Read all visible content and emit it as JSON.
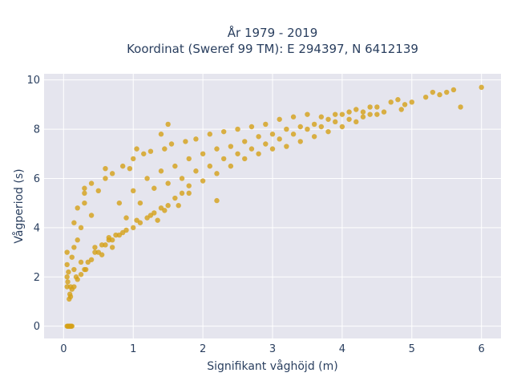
{
  "chart_data": {
    "type": "scatter",
    "title_line1": "År 1979 - 2019",
    "title_line2": "Koordinat (Sweref 99 TM): E 294397, N 6412139",
    "xlabel": "Signifikant våghöjd (m)",
    "ylabel": "Vågperiod (s)",
    "xlim": [
      -0.28,
      6.28
    ],
    "ylim": [
      -0.5,
      10.25
    ],
    "xticks": [
      0,
      1,
      2,
      3,
      4,
      5,
      6
    ],
    "yticks": [
      0,
      2,
      4,
      6,
      8,
      10
    ],
    "grid": true,
    "legend": "none",
    "marker_color": "#D4A017",
    "plot_bg": "#E5E5EE",
    "series": [
      {
        "points": [
          [
            0.05,
            0
          ],
          [
            0.06,
            0
          ],
          [
            0.07,
            0
          ],
          [
            0.08,
            0
          ],
          [
            0.09,
            0
          ],
          [
            0.1,
            0
          ],
          [
            0.11,
            0
          ],
          [
            0.12,
            0
          ],
          [
            0.05,
            1.6
          ],
          [
            0.05,
            2.0
          ],
          [
            0.05,
            2.5
          ],
          [
            0.05,
            3.0
          ],
          [
            0.06,
            1.8
          ],
          [
            0.07,
            2.2
          ],
          [
            0.08,
            1.1
          ],
          [
            0.09,
            1.3
          ],
          [
            0.1,
            1.2
          ],
          [
            0.1,
            1.6
          ],
          [
            0.12,
            1.5
          ],
          [
            0.12,
            2.8
          ],
          [
            0.15,
            1.6
          ],
          [
            0.15,
            3.2
          ],
          [
            0.15,
            4.2
          ],
          [
            0.18,
            2.0
          ],
          [
            0.2,
            1.9
          ],
          [
            0.2,
            3.5
          ],
          [
            0.2,
            4.8
          ],
          [
            0.25,
            2.1
          ],
          [
            0.25,
            4.0
          ],
          [
            0.3,
            2.3
          ],
          [
            0.3,
            5.0
          ],
          [
            0.3,
            5.4
          ],
          [
            0.35,
            2.6
          ],
          [
            0.4,
            2.7
          ],
          [
            0.4,
            4.5
          ],
          [
            0.4,
            5.8
          ],
          [
            0.45,
            3.0
          ],
          [
            0.5,
            3.0
          ],
          [
            0.5,
            5.5
          ],
          [
            0.55,
            3.3
          ],
          [
            0.6,
            3.3
          ],
          [
            0.6,
            6.0
          ],
          [
            0.65,
            3.5
          ],
          [
            0.7,
            3.5
          ],
          [
            0.7,
            6.2
          ],
          [
            0.75,
            3.7
          ],
          [
            0.8,
            3.7
          ],
          [
            0.8,
            5.0
          ],
          [
            0.85,
            6.5
          ],
          [
            0.9,
            3.9
          ],
          [
            0.95,
            6.4
          ],
          [
            1.0,
            4.0
          ],
          [
            1.0,
            5.5
          ],
          [
            1.0,
            6.8
          ],
          [
            1.05,
            7.2
          ],
          [
            1.1,
            4.2
          ],
          [
            1.15,
            7.0
          ],
          [
            1.2,
            4.4
          ],
          [
            1.2,
            6.0
          ],
          [
            1.25,
            7.1
          ],
          [
            1.3,
            4.6
          ],
          [
            1.35,
            4.3
          ],
          [
            1.4,
            4.8
          ],
          [
            1.4,
            6.3
          ],
          [
            1.45,
            7.2
          ],
          [
            1.5,
            4.9
          ],
          [
            1.55,
            7.4
          ],
          [
            1.6,
            5.2
          ],
          [
            1.6,
            6.5
          ],
          [
            1.7,
            5.4
          ],
          [
            1.75,
            7.5
          ],
          [
            1.8,
            5.7
          ],
          [
            1.8,
            6.8
          ],
          [
            1.9,
            7.6
          ],
          [
            2.0,
            5.9
          ],
          [
            2.0,
            7.0
          ],
          [
            2.1,
            7.8
          ],
          [
            2.2,
            6.2
          ],
          [
            2.2,
            7.2
          ],
          [
            2.3,
            7.9
          ],
          [
            2.4,
            6.5
          ],
          [
            2.4,
            7.3
          ],
          [
            2.5,
            8.0
          ],
          [
            2.6,
            6.8
          ],
          [
            2.6,
            7.5
          ],
          [
            2.7,
            8.1
          ],
          [
            2.8,
            7.0
          ],
          [
            2.8,
            7.7
          ],
          [
            2.9,
            8.2
          ],
          [
            3.0,
            7.2
          ],
          [
            3.0,
            7.8
          ],
          [
            3.1,
            8.4
          ],
          [
            3.2,
            7.3
          ],
          [
            3.2,
            8.0
          ],
          [
            3.3,
            8.5
          ],
          [
            3.4,
            7.5
          ],
          [
            3.4,
            8.1
          ],
          [
            3.5,
            8.6
          ],
          [
            3.6,
            7.7
          ],
          [
            3.6,
            8.2
          ],
          [
            3.7,
            8.5
          ],
          [
            3.8,
            7.9
          ],
          [
            3.8,
            8.4
          ],
          [
            3.9,
            8.6
          ],
          [
            4.0,
            8.1
          ],
          [
            4.0,
            8.6
          ],
          [
            4.1,
            8.7
          ],
          [
            4.2,
            8.3
          ],
          [
            4.2,
            8.8
          ],
          [
            4.3,
            8.5
          ],
          [
            4.4,
            8.6
          ],
          [
            4.4,
            8.9
          ],
          [
            4.5,
            8.9
          ],
          [
            4.6,
            8.7
          ],
          [
            4.7,
            9.1
          ],
          [
            4.8,
            9.2
          ],
          [
            4.85,
            8.8
          ],
          [
            4.9,
            9.0
          ],
          [
            5.0,
            9.1
          ],
          [
            5.2,
            9.3
          ],
          [
            5.3,
            9.5
          ],
          [
            5.4,
            9.4
          ],
          [
            5.5,
            9.5
          ],
          [
            5.6,
            9.6
          ],
          [
            5.7,
            8.9
          ],
          [
            6.0,
            9.7
          ],
          [
            0.32,
            2.3
          ],
          [
            0.55,
            2.9
          ],
          [
            0.7,
            3.2
          ],
          [
            0.9,
            4.4
          ],
          [
            1.1,
            5.0
          ],
          [
            1.3,
            5.6
          ],
          [
            1.5,
            5.8
          ],
          [
            1.7,
            6.0
          ],
          [
            1.9,
            6.3
          ],
          [
            2.1,
            6.5
          ],
          [
            2.3,
            6.8
          ],
          [
            2.5,
            7.0
          ],
          [
            2.7,
            7.2
          ],
          [
            2.9,
            7.4
          ],
          [
            3.1,
            7.6
          ],
          [
            3.3,
            7.8
          ],
          [
            3.5,
            8.0
          ],
          [
            3.7,
            8.1
          ],
          [
            3.9,
            8.3
          ],
          [
            4.1,
            8.4
          ],
          [
            4.3,
            8.7
          ],
          [
            4.5,
            8.6
          ],
          [
            1.65,
            4.9
          ],
          [
            1.45,
            4.7
          ],
          [
            1.25,
            4.5
          ],
          [
            1.05,
            4.3
          ],
          [
            0.85,
            3.8
          ],
          [
            0.65,
            3.6
          ],
          [
            0.45,
            3.2
          ],
          [
            0.25,
            2.6
          ],
          [
            0.15,
            2.3
          ],
          [
            1.5,
            8.2
          ],
          [
            1.4,
            7.8
          ],
          [
            2.2,
            5.1
          ],
          [
            1.8,
            5.4
          ],
          [
            0.3,
            5.6
          ],
          [
            0.6,
            6.4
          ]
        ]
      }
    ]
  }
}
